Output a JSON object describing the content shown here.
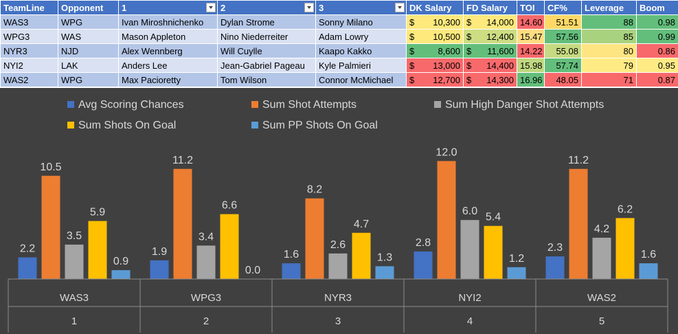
{
  "table": {
    "headers": [
      "TeamLine",
      "Opponent",
      "1",
      "2",
      "3",
      "DK Salary",
      "FD Salary",
      "TOI",
      "CF%",
      "Leverage",
      "Boom"
    ],
    "rows": [
      {
        "teamline": "WAS3",
        "opponent": "WPG",
        "p1": "Ivan Miroshnichenko",
        "p2": "Dylan Strome",
        "p3": "Sonny Milano",
        "dk_salary": "10,300",
        "fd_salary": "14,000",
        "toi": "14.60",
        "cf": "51.51",
        "leverage": "88",
        "boom": "0.98",
        "colors": {
          "dk": "#fde97c",
          "fd": "#fde97c",
          "toi": "#f8696b",
          "cf": "#ffd966",
          "leverage": "#63be7b",
          "boom": "#63be7b"
        }
      },
      {
        "teamline": "WPG3",
        "opponent": "WAS",
        "p1": "Mason Appleton",
        "p2": "Nino Niederreiter",
        "p3": "Adam Lowry",
        "dk_salary": "10,500",
        "fd_salary": "12,400",
        "toi": "15.47",
        "cf": "57.56",
        "leverage": "85",
        "boom": "0.99",
        "colors": {
          "dk": "#fde97c",
          "fd": "#ccdd82",
          "toi": "#fedd81",
          "cf": "#63be7b",
          "leverage": "#a9d27f",
          "boom": "#63be7b"
        }
      },
      {
        "teamline": "NYR3",
        "opponent": "NJD",
        "p1": "Alex Wennberg",
        "p2": "Will Cuylle",
        "p3": "Kaapo Kakko",
        "dk_salary": "8,600",
        "fd_salary": "11,600",
        "toi": "14.22",
        "cf": "55.08",
        "leverage": "80",
        "boom": "0.86",
        "colors": {
          "dk": "#63be7b",
          "fd": "#63be7b",
          "toi": "#f8696b",
          "cf": "#c5da81",
          "leverage": "#fee582",
          "boom": "#f8696b"
        }
      },
      {
        "teamline": "NYI2",
        "opponent": "LAK",
        "p1": "Anders Lee",
        "p2": "Jean-Gabriel Pageau",
        "p3": "Kyle Palmieri",
        "dk_salary": "13,000",
        "fd_salary": "14,400",
        "toi": "15.98",
        "cf": "57.74",
        "leverage": "79",
        "boom": "0.95",
        "colors": {
          "dk": "#f8696b",
          "fd": "#f8696b",
          "toi": "#bfd780",
          "cf": "#63be7b",
          "leverage": "#ffeb84",
          "boom": "#ffeb84"
        }
      },
      {
        "teamline": "WAS2",
        "opponent": "WPG",
        "p1": "Max Pacioretty",
        "p2": "Tom Wilson",
        "p3": "Connor McMichael",
        "dk_salary": "12,700",
        "fd_salary": "14,300",
        "toi": "16.96",
        "cf": "48.05",
        "leverage": "71",
        "boom": "0.87",
        "colors": {
          "dk": "#f8696b",
          "fd": "#f8696b",
          "toi": "#63be7b",
          "cf": "#f8696b",
          "leverage": "#f8696b",
          "boom": "#f8696b"
        }
      }
    ]
  },
  "chart_data": {
    "type": "bar",
    "categories": [
      "WAS3",
      "WPG3",
      "NYR3",
      "NYI2",
      "WAS2"
    ],
    "category_index": [
      "1",
      "2",
      "3",
      "4",
      "5"
    ],
    "series": [
      {
        "name": "Avg Scoring Chances",
        "color": "#4472c4",
        "values": [
          2.2,
          1.9,
          1.6,
          2.8,
          2.3
        ]
      },
      {
        "name": "Sum Shot Attempts",
        "color": "#ed7d31",
        "values": [
          10.5,
          11.2,
          8.2,
          12.0,
          11.2
        ]
      },
      {
        "name": "Sum High Danger Shot Attempts",
        "color": "#a5a5a5",
        "values": [
          3.5,
          3.4,
          2.6,
          6.0,
          4.2
        ]
      },
      {
        "name": "Sum Shots On Goal",
        "color": "#ffc000",
        "values": [
          5.9,
          6.6,
          4.7,
          5.4,
          6.2
        ]
      },
      {
        "name": "Sum PP Shots On Goal",
        "color": "#5b9bd5",
        "values": [
          0.9,
          0.0,
          1.3,
          1.2,
          1.6
        ]
      }
    ],
    "ylim": [
      0,
      13
    ],
    "legend": "top",
    "grid": false,
    "background": "#404040"
  }
}
